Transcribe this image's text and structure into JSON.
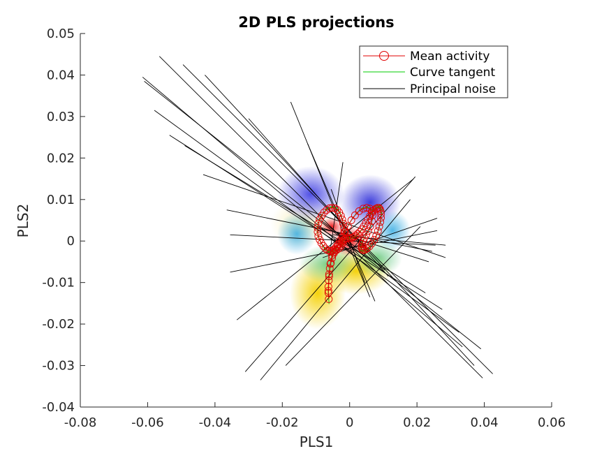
{
  "chart_data": {
    "type": "scatter",
    "title": "2D PLS projections",
    "xlabel": "PLS1",
    "ylabel": "PLS2",
    "xlim": [
      -0.08,
      0.06
    ],
    "ylim": [
      -0.04,
      0.05
    ],
    "xticks": [
      -0.08,
      -0.06,
      -0.04,
      -0.02,
      0,
      0.02,
      0.04,
      0.06
    ],
    "yticks": [
      -0.04,
      -0.03,
      -0.02,
      -0.01,
      0,
      0.01,
      0.02,
      0.03,
      0.04,
      0.05
    ],
    "xtick_labels": [
      "-0.08",
      "-0.06",
      "-0.04",
      "-0.02",
      "0",
      "0.02",
      "0.04",
      "0.06"
    ],
    "ytick_labels": [
      "-0.04",
      "-0.03",
      "-0.02",
      "-0.01",
      "0",
      "0.01",
      "0.02",
      "0.03",
      "0.04",
      "0.05"
    ],
    "grid": false,
    "legend_position": "top-right",
    "legend": [
      "Mean activity",
      "Curve tangent",
      "Principal noise"
    ],
    "colors": {
      "mean_activity": "#e00000",
      "curve_tangent": "#00cc00",
      "principal_noise": "#000000",
      "axes": "#262626"
    },
    "mean_activity": {
      "x": [
        -0.0062,
        -0.0063,
        -0.0063,
        -0.0062,
        -0.0061,
        -0.0059,
        -0.0056,
        -0.0052,
        -0.0047,
        -0.0042,
        -0.0036,
        -0.003,
        -0.0024,
        -0.0018,
        -0.0012,
        -0.0006,
        0.0,
        0.0006,
        0.0012,
        0.0018,
        0.0024,
        0.003,
        0.0036,
        0.0042,
        0.0048,
        0.0054,
        0.006,
        0.0066,
        0.0072,
        0.0078,
        0.0083,
        0.0087,
        0.009,
        0.0092,
        0.0093,
        0.0093,
        0.0091,
        0.0088,
        0.0084,
        0.0079,
        0.0073,
        0.0066,
        0.0059,
        0.0052,
        0.0046,
        0.0041,
        0.0038,
        0.0036,
        0.0036,
        0.0037,
        0.004,
        0.0044,
        0.0049,
        0.0055,
        0.0061,
        0.0066,
        0.0068,
        0.0066,
        0.006,
        0.0051,
        0.004,
        0.0028,
        0.0016,
        0.0005,
        -0.0005,
        -0.0014,
        -0.0022,
        -0.0029,
        -0.0035,
        -0.004,
        -0.0045,
        -0.005,
        -0.0055,
        -0.006,
        -0.0066,
        -0.0072,
        -0.0078,
        -0.0084,
        -0.0089,
        -0.0093,
        -0.0095,
        -0.0095,
        -0.0093,
        -0.0089,
        -0.0083,
        -0.0076,
        -0.0068,
        -0.006,
        -0.0052,
        -0.0044,
        -0.0037,
        -0.0031,
        -0.0026,
        -0.0022,
        -0.0019,
        -0.0017,
        -0.0016,
        -0.0016,
        -0.0018,
        -0.0021,
        -0.0026,
        -0.0032,
        -0.0039,
        -0.0046,
        -0.0052,
        -0.0057,
        -0.0061,
        -0.0063
      ],
      "y": [
        -0.014,
        -0.0125,
        -0.011,
        -0.0095,
        -0.008,
        -0.0066,
        -0.0053,
        -0.0041,
        -0.003,
        -0.0021,
        -0.0013,
        -0.0007,
        -0.0002,
        0.0002,
        0.0005,
        0.0006,
        0.0007,
        0.0008,
        0.001,
        0.0013,
        0.0017,
        0.0022,
        0.0028,
        0.0035,
        0.0043,
        0.0052,
        0.006,
        0.0068,
        0.0074,
        0.0078,
        0.008,
        0.008,
        0.0077,
        0.0072,
        0.0065,
        0.0056,
        0.0046,
        0.0035,
        0.0024,
        0.0013,
        0.0003,
        -0.0006,
        -0.0013,
        -0.0018,
        -0.0021,
        -0.0022,
        -0.0021,
        -0.0018,
        -0.0013,
        -0.0007,
        0.0,
        0.0007,
        0.0015,
        0.0024,
        0.0035,
        0.0048,
        0.0062,
        0.0072,
        0.0078,
        0.008,
        0.0078,
        0.0072,
        0.0062,
        0.005,
        0.0036,
        0.0022,
        0.001,
        0.0,
        -0.0008,
        -0.0014,
        -0.0019,
        -0.0022,
        -0.0024,
        -0.0024,
        -0.0022,
        -0.0018,
        -0.0012,
        -0.0005,
        0.0003,
        0.0012,
        0.0022,
        0.0032,
        0.0042,
        0.0052,
        0.0061,
        0.0069,
        0.0075,
        0.0079,
        0.008,
        0.0079,
        0.0075,
        0.0069,
        0.0061,
        0.0052,
        0.0042,
        0.0032,
        0.0022,
        0.0012,
        0.0003,
        -0.0005,
        -0.0012,
        -0.0018,
        -0.0022,
        -0.0026,
        -0.0035,
        -0.0055,
        -0.0085,
        -0.012
      ]
    },
    "principal_noise_segments": [
      [
        -0.0565,
        0.0445,
        0.0395,
        -0.033
      ],
      [
        -0.0495,
        0.0425,
        0.0425,
        -0.032
      ],
      [
        -0.043,
        0.04,
        0.037,
        -0.03
      ],
      [
        -0.0615,
        0.0395,
        0.0335,
        -0.0255
      ],
      [
        -0.061,
        0.0385,
        0.039,
        -0.026
      ],
      [
        -0.058,
        0.0315,
        0.0325,
        -0.022
      ],
      [
        -0.0535,
        0.0255,
        0.0275,
        -0.0165
      ],
      [
        -0.049,
        0.023,
        0.0225,
        -0.0125
      ],
      [
        -0.0435,
        0.016,
        0.0285,
        -0.004
      ],
      [
        -0.0365,
        0.0075,
        0.0245,
        -0.0025
      ],
      [
        -0.0355,
        0.0015,
        0.0255,
        -0.001
      ],
      [
        -0.0355,
        -0.0075,
        0.026,
        0.0025
      ],
      [
        -0.0335,
        -0.019,
        0.019,
        0.015
      ],
      [
        -0.031,
        -0.0315,
        0.0195,
        0.0155
      ],
      [
        -0.0265,
        -0.0335,
        0.018,
        0.01
      ],
      [
        -0.019,
        -0.03,
        0.021,
        0.0035
      ],
      [
        -0.0175,
        0.0335,
        0.006,
        -0.0135
      ],
      [
        -0.0125,
        0.0235,
        0.0075,
        -0.0145
      ],
      [
        -0.0055,
        0.0125,
        0.0045,
        -0.01
      ],
      [
        -0.002,
        0.019,
        -0.006,
        -0.0035
      ],
      [
        -0.03,
        0.0295,
        0.0115,
        -0.0085
      ],
      [
        -0.0095,
        0.0035,
        0.0235,
        -0.005
      ],
      [
        -0.005,
        0.0015,
        0.0285,
        -0.001
      ],
      [
        -0.008,
        -0.004,
        0.026,
        0.0055
      ],
      [
        0.0105,
        -0.007,
        -0.0085,
        0.005
      ]
    ]
  }
}
